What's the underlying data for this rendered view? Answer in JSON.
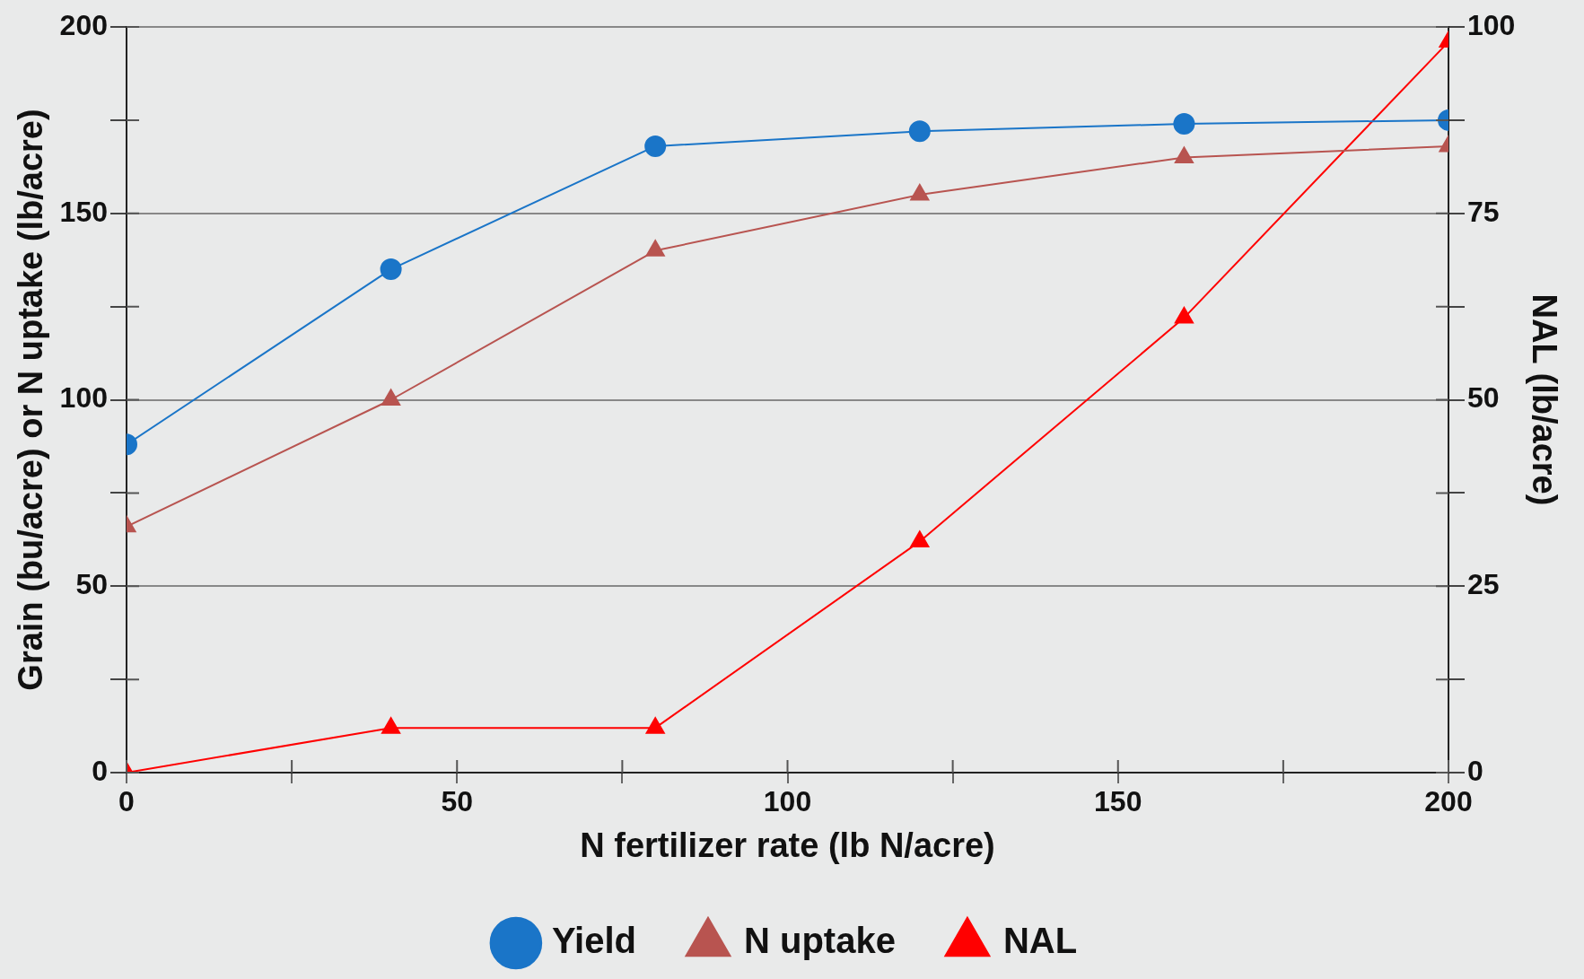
{
  "chart_data": {
    "type": "line",
    "xlabel": "N fertilizer rate (lb N/acre)",
    "ylabel": "Grain (bu/acre) or N uptake (lb/acre)",
    "y2label": "NAL (lb/acre)",
    "x": [
      0,
      40,
      80,
      120,
      160,
      200
    ],
    "series": [
      {
        "name": "Yield",
        "color": "#1a75c8",
        "marker": "circle",
        "values": [
          88,
          135,
          168,
          172,
          174,
          175
        ]
      },
      {
        "name": "N uptake",
        "color": "#b85450",
        "marker": "triangle",
        "values": [
          66,
          100,
          140,
          155,
          165,
          168
        ]
      },
      {
        "name": "NAL",
        "color": "#ff0000",
        "marker": "triangle",
        "axis": "y2",
        "values": [
          0,
          6,
          6,
          31,
          61,
          98
        ]
      }
    ],
    "xlim": [
      0,
      200
    ],
    "xticks": [
      0,
      {
        "value": 25,
        "label": null
      },
      50,
      {
        "value": 75,
        "label": null
      },
      100,
      {
        "value": 125,
        "label": null
      },
      150,
      {
        "value": 175,
        "label": null
      },
      200
    ],
    "ylim": [
      0,
      200
    ],
    "yticks": [
      0,
      {
        "value": 25,
        "label": null
      },
      50,
      {
        "value": 75,
        "label": null
      },
      100,
      {
        "value": 125,
        "label": null
      },
      150,
      {
        "value": 175,
        "label": null
      },
      200
    ],
    "y2lim": [
      0,
      100
    ],
    "y2ticks": [
      0,
      {
        "value": 12.5,
        "label": null
      },
      25,
      {
        "value": 37.5,
        "label": null
      },
      50,
      {
        "value": 62.5,
        "label": null
      },
      75,
      {
        "value": 87.5,
        "label": null
      },
      100
    ],
    "grid": "y",
    "legend": "bottom",
    "line_style": "solid"
  }
}
